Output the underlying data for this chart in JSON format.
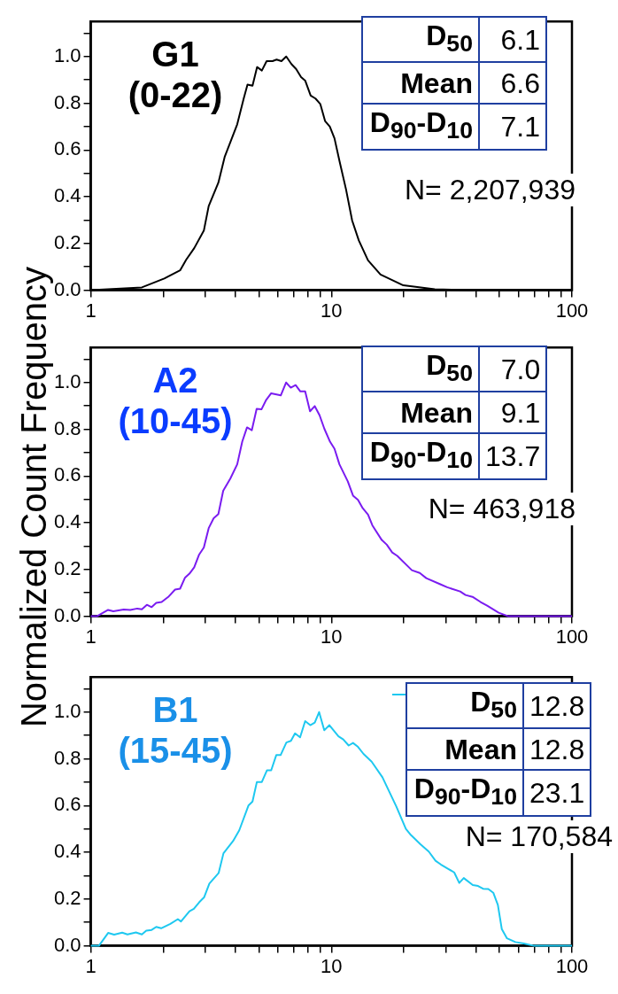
{
  "chart_data": [
    {
      "type": "line",
      "title": "G1\n(0-22)",
      "ylabel": "Normalized Count Frequency",
      "xlim": [
        1,
        100
      ],
      "xticks": [
        1,
        {
          "value": 2,
          "label": null
        },
        {
          "value": 3,
          "label": null
        },
        {
          "value": 4,
          "label": null
        },
        {
          "value": 5,
          "label": null
        },
        {
          "value": 6,
          "label": null
        },
        {
          "value": 7,
          "label": null
        },
        {
          "value": 8,
          "label": null
        },
        {
          "value": 9,
          "label": null
        },
        10,
        {
          "value": 20,
          "label": null
        },
        {
          "value": 30,
          "label": null
        },
        {
          "value": 40,
          "label": null
        },
        {
          "value": 50,
          "label": null
        },
        {
          "value": 60,
          "label": null
        },
        {
          "value": 70,
          "label": null
        },
        {
          "value": 80,
          "label": null
        },
        {
          "value": 90,
          "label": null
        },
        100
      ],
      "ylim": [
        0,
        1.15
      ],
      "yticks": [
        {
          "value": 0,
          "label": "0.0"
        },
        {
          "value": 0.1,
          "label": null
        },
        0.2,
        {
          "value": 0.3,
          "label": null
        },
        0.4,
        {
          "value": 0.5,
          "label": null
        },
        0.6,
        {
          "value": 0.7,
          "label": null
        },
        0.8,
        {
          "value": 0.9,
          "label": null
        },
        {
          "value": 1,
          "label": "1.0"
        },
        {
          "value": 1.1,
          "label": null
        }
      ],
      "log": "x",
      "series": [
        {
          "color": "#000000",
          "x": [
            1,
            1.63,
            2.02,
            2.35,
            2.49,
            2.69,
            2.95,
            3.09,
            3.39,
            3.6,
            4.06,
            4.32,
            4.48,
            4.7,
            4.91,
            5.14,
            5.38,
            5.69,
            5.92,
            6.2,
            6.49,
            6.83,
            7.14,
            7.48,
            7.78,
            8.2,
            8.59,
            8.99,
            9.41,
            9.85,
            10.3,
            10.8,
            11.5,
            12.2,
            13,
            14.2,
            16,
            19.9,
            26.9,
            36.6,
            100
          ],
          "values": [
            0,
            0.012,
            0.05,
            0.085,
            0.13,
            0.18,
            0.255,
            0.36,
            0.46,
            0.57,
            0.71,
            0.82,
            0.88,
            0.875,
            0.955,
            0.94,
            0.98,
            0.98,
            0.987,
            0.98,
            1,
            0.967,
            0.946,
            0.912,
            0.897,
            0.833,
            0.82,
            0.797,
            0.724,
            0.7,
            0.65,
            0.554,
            0.432,
            0.298,
            0.213,
            0.128,
            0.067,
            0.021,
            0.004,
            0,
            0
          ]
        }
      ],
      "annotations": [
        "D$_{50}$",
        "6.1",
        "Mean",
        "6.6",
        "D$_{90}$-D$_{10}$",
        "7.1",
        "N= 2,207,939"
      ]
    },
    {
      "type": "line",
      "title": "A2\n(10-45)",
      "xlim": [
        1,
        100
      ],
      "xticks": [
        1,
        {
          "value": 2,
          "label": null
        },
        {
          "value": 3,
          "label": null
        },
        {
          "value": 4,
          "label": null
        },
        {
          "value": 5,
          "label": null
        },
        {
          "value": 6,
          "label": null
        },
        {
          "value": 7,
          "label": null
        },
        {
          "value": 8,
          "label": null
        },
        {
          "value": 9,
          "label": null
        },
        10,
        {
          "value": 20,
          "label": null
        },
        {
          "value": 30,
          "label": null
        },
        {
          "value": 40,
          "label": null
        },
        {
          "value": 50,
          "label": null
        },
        {
          "value": 60,
          "label": null
        },
        {
          "value": 70,
          "label": null
        },
        {
          "value": 80,
          "label": null
        },
        {
          "value": 90,
          "label": null
        },
        100
      ],
      "ylim": [
        0,
        1.15
      ],
      "yticks": [
        {
          "value": 0,
          "label": "0.0"
        },
        {
          "value": 0.1,
          "label": null
        },
        0.2,
        {
          "value": 0.3,
          "label": null
        },
        0.4,
        {
          "value": 0.5,
          "label": null
        },
        0.6,
        {
          "value": 0.7,
          "label": null
        },
        0.8,
        {
          "value": 0.9,
          "label": null
        },
        {
          "value": 1,
          "label": "1.0"
        },
        {
          "value": 1.1,
          "label": null
        }
      ],
      "log": "x",
      "series": [
        {
          "color": "#7a1cf0",
          "x": [
            1,
            1.06,
            1.18,
            1.24,
            1.37,
            1.46,
            1.56,
            1.63,
            1.71,
            1.79,
            1.87,
            1.97,
            2.11,
            2.24,
            2.35,
            2.46,
            2.57,
            2.69,
            2.82,
            2.95,
            3.09,
            3.24,
            3.39,
            3.55,
            3.8,
            4.06,
            4.26,
            4.46,
            4.67,
            4.89,
            5.12,
            5.36,
            5.62,
            6.16,
            6.48,
            6.78,
            7.1,
            7.43,
            7.78,
            8.15,
            8.53,
            8.93,
            9.35,
            9.88,
            10.3,
            10.8,
            11.7,
            12.3,
            12.9,
            13.5,
            14.2,
            14.8,
            16.2,
            17,
            17.9,
            18.8,
            21.6,
            23.3,
            24.8,
            28.5,
            30.3,
            34.3,
            36.1,
            38.6,
            41.7,
            44.4,
            49.6,
            54.4,
            100
          ],
          "values": [
            0,
            0,
            0.027,
            0.021,
            0.029,
            0.027,
            0.033,
            0.03,
            0.049,
            0.039,
            0.057,
            0.061,
            0.085,
            0.114,
            0.118,
            0.164,
            0.182,
            0.209,
            0.264,
            0.294,
            0.377,
            0.419,
            0.437,
            0.537,
            0.589,
            0.65,
            0.747,
            0.808,
            0.796,
            0.887,
            0.885,
            0.926,
            0.954,
            0.945,
            1,
            0.978,
            0.989,
            0.962,
            0.962,
            0.877,
            0.899,
            0.86,
            0.802,
            0.746,
            0.717,
            0.65,
            0.577,
            0.516,
            0.498,
            0.462,
            0.435,
            0.389,
            0.326,
            0.306,
            0.273,
            0.258,
            0.197,
            0.185,
            0.163,
            0.136,
            0.124,
            0.106,
            0.091,
            0.083,
            0.061,
            0.045,
            0.015,
            0,
            0
          ]
        }
      ],
      "annotations": [
        "D$_{50}$",
        "7.0",
        "Mean",
        "9.1",
        "D$_{90}$-D$_{10}$",
        "13.7",
        "N= 463,918"
      ]
    },
    {
      "type": "line",
      "title": "B1\n(15-45)",
      "xlim": [
        1,
        100
      ],
      "xticks": [
        1,
        {
          "value": 2,
          "label": null
        },
        {
          "value": 3,
          "label": null
        },
        {
          "value": 4,
          "label": null
        },
        {
          "value": 5,
          "label": null
        },
        {
          "value": 6,
          "label": null
        },
        {
          "value": 7,
          "label": null
        },
        {
          "value": 8,
          "label": null
        },
        {
          "value": 9,
          "label": null
        },
        10,
        {
          "value": 20,
          "label": null
        },
        {
          "value": 30,
          "label": null
        },
        {
          "value": 40,
          "label": null
        },
        {
          "value": 50,
          "label": null
        },
        {
          "value": 60,
          "label": null
        },
        {
          "value": 70,
          "label": null
        },
        {
          "value": 80,
          "label": null
        },
        {
          "value": 90,
          "label": null
        },
        100
      ],
      "ylim": [
        0,
        1.15
      ],
      "yticks": [
        {
          "value": 0,
          "label": "0.0"
        },
        {
          "value": 0.1,
          "label": null
        },
        0.2,
        {
          "value": 0.3,
          "label": null
        },
        0.4,
        {
          "value": 0.5,
          "label": null
        },
        0.6,
        {
          "value": 0.7,
          "label": null
        },
        0.8,
        {
          "value": 0.9,
          "label": null
        },
        {
          "value": 1,
          "label": "1.0"
        },
        {
          "value": 1.1,
          "label": null
        }
      ],
      "log": "x",
      "series": [
        {
          "color": "#1ec8f0",
          "x": [
            1,
            1.08,
            1.18,
            1.25,
            1.35,
            1.42,
            1.54,
            1.63,
            1.7,
            1.79,
            1.87,
            1.96,
            2.14,
            2.3,
            2.37,
            2.57,
            2.68,
            2.82,
            2.96,
            3.11,
            3.4,
            3.56,
            3.9,
            4.14,
            4.52,
            4.7,
            4.9,
            5.14,
            5.4,
            5.62,
            5.9,
            6.15,
            6.5,
            6.79,
            7.06,
            7.41,
            7.78,
            8.17,
            8.53,
            8.89,
            9.34,
            9.81,
            10.7,
            11.2,
            11.8,
            12.3,
            12.9,
            13.6,
            14.7,
            16.3,
            18.6,
            20.4,
            21.4,
            23.4,
            25.4,
            27.1,
            28.5,
            30.4,
            32.4,
            34,
            35.5,
            38.7,
            40.7,
            42.7,
            44.9,
            47.1,
            49.2,
            51.1,
            53.7,
            58.2,
            63.1,
            69.6,
            100
          ],
          "values": [
            0,
            0,
            0.055,
            0.048,
            0.056,
            0.049,
            0.057,
            0.049,
            0.065,
            0.068,
            0.081,
            0.075,
            0.094,
            0.114,
            0.104,
            0.148,
            0.158,
            0.186,
            0.208,
            0.266,
            0.312,
            0.396,
            0.448,
            0.494,
            0.6,
            0.617,
            0.701,
            0.701,
            0.751,
            0.751,
            0.816,
            0.816,
            0.87,
            0.877,
            0.909,
            0.892,
            0.961,
            0.944,
            0.955,
            1,
            0.922,
            0.944,
            0.896,
            0.883,
            0.857,
            0.868,
            0.851,
            0.821,
            0.788,
            0.721,
            0.597,
            0.5,
            0.474,
            0.435,
            0.403,
            0.364,
            0.348,
            0.331,
            0.314,
            0.269,
            0.29,
            0.26,
            0.256,
            0.244,
            0.243,
            0.227,
            0.175,
            0.071,
            0.032,
            0.016,
            0.01,
            0,
            0
          ]
        }
      ],
      "annotations": [
        "D$_{50}$",
        "12.8",
        "Mean",
        "12.8",
        "D$_{90}$-D$_{10}$",
        "23.1",
        "N= 170,584"
      ]
    }
  ]
}
